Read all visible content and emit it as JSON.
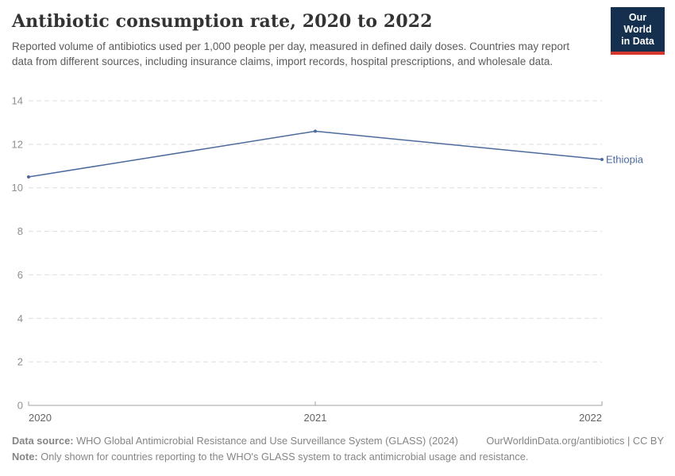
{
  "header": {
    "title": "Antibiotic consumption rate, 2020 to 2022",
    "subtitle": "Reported volume of antibiotics used per 1,000 people per day, measured in defined daily doses. Countries may report data from different sources, including insurance claims, import records, hospital prescriptions, and wholesale data."
  },
  "logo": {
    "line1": "Our World",
    "line2": "in Data",
    "bg_color": "#15304e",
    "accent_color": "#d5372d"
  },
  "chart_data": {
    "type": "line",
    "title": "Antibiotic consumption rate, 2020 to 2022",
    "x": [
      "2020",
      "2021",
      "2022"
    ],
    "series": [
      {
        "name": "Ethiopia",
        "values": [
          10.5,
          12.6,
          11.3
        ],
        "color": "#4c6a9c"
      }
    ],
    "ylim": [
      0,
      14
    ],
    "yticks": [
      0,
      2,
      4,
      6,
      8,
      10,
      12,
      14
    ],
    "xlabel": "",
    "ylabel": "",
    "grid": "horizontal-dashed",
    "legend": "line-end-label",
    "axis_color": "#a1a1a1",
    "grid_color": "#dedede",
    "ytick_color": "#8f8f8f",
    "xtick_color": "#636363"
  },
  "footer": {
    "datasource_label": "Data source:",
    "datasource_text": " WHO Global Antimicrobial Resistance and Use Surveillance System (GLASS) (2024)",
    "link_text": "OurWorldinData.org/antibiotics | CC BY",
    "note_label": "Note:",
    "note_text": " Only shown for countries reporting to the WHO's GLASS system to track antimicrobial usage and resistance."
  }
}
